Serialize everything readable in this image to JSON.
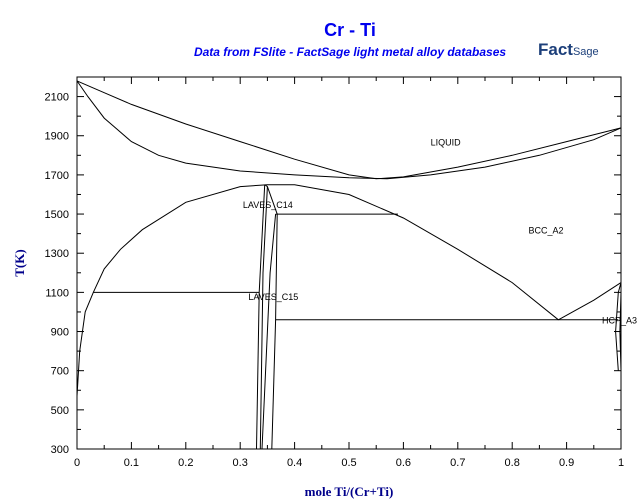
{
  "chart_data": {
    "type": "line",
    "title": "Cr - Ti",
    "subtitle": "Data from FSlite - FactSage light metal alloy databases",
    "logo_text": "FactSage",
    "xlabel": "mole Ti/(Cr+Ti)",
    "ylabel": "T(K)",
    "xlim": [
      0,
      1
    ],
    "ylim": [
      300,
      2200
    ],
    "xticks": [
      "0",
      "0.1",
      "0.2",
      "0.3",
      "0.4",
      "0.5",
      "0.6",
      "0.7",
      "0.8",
      "0.9",
      "1"
    ],
    "yticks": [
      "300",
      "500",
      "700",
      "900",
      "1100",
      "1300",
      "1500",
      "1700",
      "1900",
      "2100"
    ],
    "colors": {
      "title": "#0000ee",
      "axis_label": "#00008b",
      "lines": "#000000"
    },
    "phase_labels": [
      {
        "text": "LIQUID",
        "x": 0.65,
        "y": 1850
      },
      {
        "text": "LAVES_C14",
        "x": 0.305,
        "y": 1530
      },
      {
        "text": "BCC_A2",
        "x": 0.83,
        "y": 1400
      },
      {
        "text": "LAVES_C15",
        "x": 0.315,
        "y": 1060
      },
      {
        "text": "HCP_A3",
        "x": 0.965,
        "y": 940
      }
    ],
    "series": [
      {
        "x": [
          0,
          0.05,
          0.1,
          0.2,
          0.3,
          0.4,
          0.5,
          0.55,
          0.6,
          0.7,
          0.8,
          0.9,
          1.0
        ],
        "y": [
          2180,
          2120,
          2060,
          1960,
          1870,
          1780,
          1700,
          1680,
          1690,
          1740,
          1800,
          1870,
          1940
        ]
      },
      {
        "x": [
          0,
          0.02,
          0.05,
          0.1,
          0.15,
          0.2,
          0.3,
          0.4,
          0.5,
          0.57,
          0.65,
          0.75,
          0.85,
          0.95,
          1.0
        ],
        "y": [
          2180,
          2100,
          1990,
          1870,
          1800,
          1760,
          1720,
          1700,
          1685,
          1680,
          1700,
          1740,
          1800,
          1880,
          1940
        ]
      },
      {
        "x": [
          0,
          0.005,
          0.015,
          0.03,
          0.05,
          0.08,
          0.12,
          0.2,
          0.3,
          0.35,
          0.4,
          0.5,
          0.6,
          0.7,
          0.8,
          0.885
        ],
        "y": [
          570,
          800,
          1000,
          1100,
          1220,
          1320,
          1420,
          1560,
          1640,
          1650,
          1650,
          1600,
          1480,
          1320,
          1150,
          960
        ]
      },
      {
        "x": [
          0.885,
          0.95,
          1.0
        ],
        "y": [
          960,
          1060,
          1150
        ]
      },
      {
        "x": [
          0.03,
          0.335
        ],
        "y": [
          1100,
          1100
        ]
      },
      {
        "x": [
          0.365,
          0.59
        ],
        "y": [
          1500,
          1500
        ]
      },
      {
        "x": [
          0.365,
          0.995
        ],
        "y": [
          960,
          960
        ]
      },
      {
        "x": [
          0.33,
          0.335,
          0.345
        ],
        "y": [
          300,
          1100,
          1650
        ]
      },
      {
        "x": [
          0.337,
          0.342,
          0.35
        ],
        "y": [
          300,
          1200,
          1640
        ]
      },
      {
        "x": [
          0.34,
          0.355,
          0.365
        ],
        "y": [
          300,
          1200,
          1500
        ]
      },
      {
        "x": [
          0.358,
          0.365,
          0.368
        ],
        "y": [
          300,
          960,
          1500
        ]
      },
      {
        "x": [
          0.345,
          0.35,
          0.368
        ],
        "y": [
          1650,
          1640,
          1500
        ]
      },
      {
        "x": [
          0.995,
          0.99,
          0.995,
          1.0
        ],
        "y": [
          700,
          900,
          1100,
          1150
        ]
      },
      {
        "x": [
          1.0,
          0.998,
          1.0
        ],
        "y": [
          700,
          900,
          1100
        ]
      }
    ]
  }
}
